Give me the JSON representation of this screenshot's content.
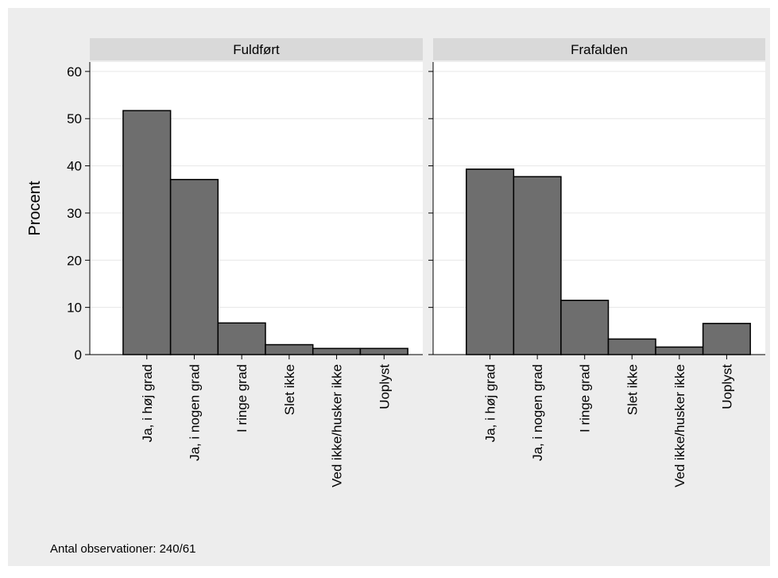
{
  "chart_data": {
    "type": "bar",
    "ylabel": "Procent",
    "ylim": [
      0,
      62
    ],
    "yticks": [
      0,
      10,
      20,
      30,
      40,
      50,
      60
    ],
    "grid": true,
    "categories": [
      "Ja, i høj grad",
      "Ja, i nogen grad",
      "I ringe grad",
      "Slet ikke",
      "Ved ikke/husker ikke",
      "Uoplyst"
    ],
    "panels": [
      {
        "title": "Fuldført",
        "values": [
          51.7,
          37.1,
          6.7,
          2.1,
          1.3,
          1.3
        ]
      },
      {
        "title": "Frafalden",
        "values": [
          39.3,
          37.7,
          11.5,
          3.3,
          1.6,
          6.6
        ]
      }
    ],
    "note": "Antal observationer: 240/61",
    "colors": {
      "background": "#ededed",
      "plot_area": "#ffffff",
      "strip": "#d9d9d9",
      "bar_fill": "#6e6e6e",
      "bar_stroke": "#000000",
      "grid": "#e6e6e6"
    }
  }
}
